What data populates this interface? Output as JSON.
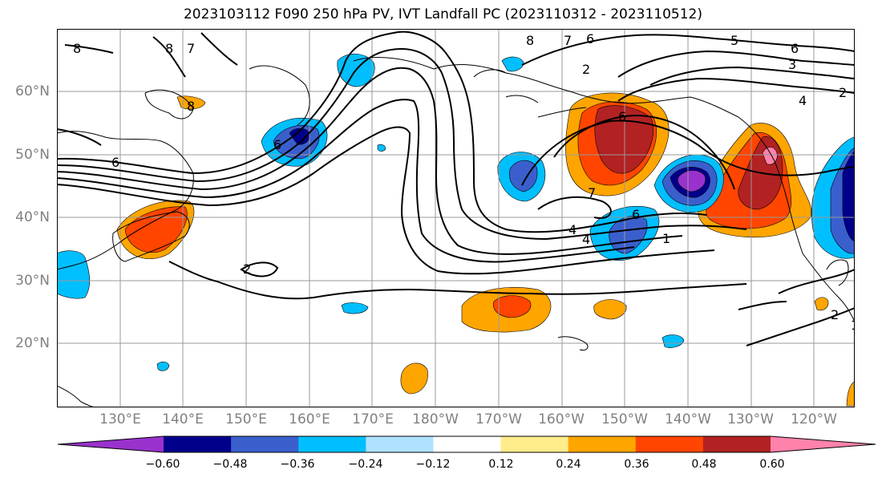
{
  "title": "2023103112 F090 250 hPa PV, IVT Landfall PC (2023110312 - 2023110512)",
  "lon_ticks": [
    "130°E",
    "140°E",
    "150°E",
    "160°E",
    "170°E",
    "180°W",
    "170°W",
    "160°W",
    "150°W",
    "140°W",
    "130°W",
    "120°W"
  ],
  "lat_ticks": [
    "60°N",
    "50°N",
    "40°N",
    "30°N",
    "20°N"
  ],
  "colorbar": {
    "ticks": [
      "−0.60",
      "−0.48",
      "−0.36",
      "−0.24",
      "−0.12",
      "0.12",
      "0.24",
      "0.36",
      "0.48",
      "0.60"
    ],
    "colors": [
      "#9932cc",
      "#00008b",
      "#3a5fcd",
      "#00bfff",
      "#b0e2ff",
      "#ffffff",
      "#ffec8b",
      "#ffa500",
      "#ff4500",
      "#b22222",
      "#ff82ab"
    ]
  },
  "contour_labels": [
    "8",
    "8",
    "7",
    "6",
    "6",
    "8",
    "6",
    "7",
    "6",
    "5",
    "3",
    "2",
    "4",
    "7",
    "6",
    "4",
    "4",
    "1",
    "2",
    "2",
    "1",
    "6",
    "2",
    "8",
    "6"
  ]
}
